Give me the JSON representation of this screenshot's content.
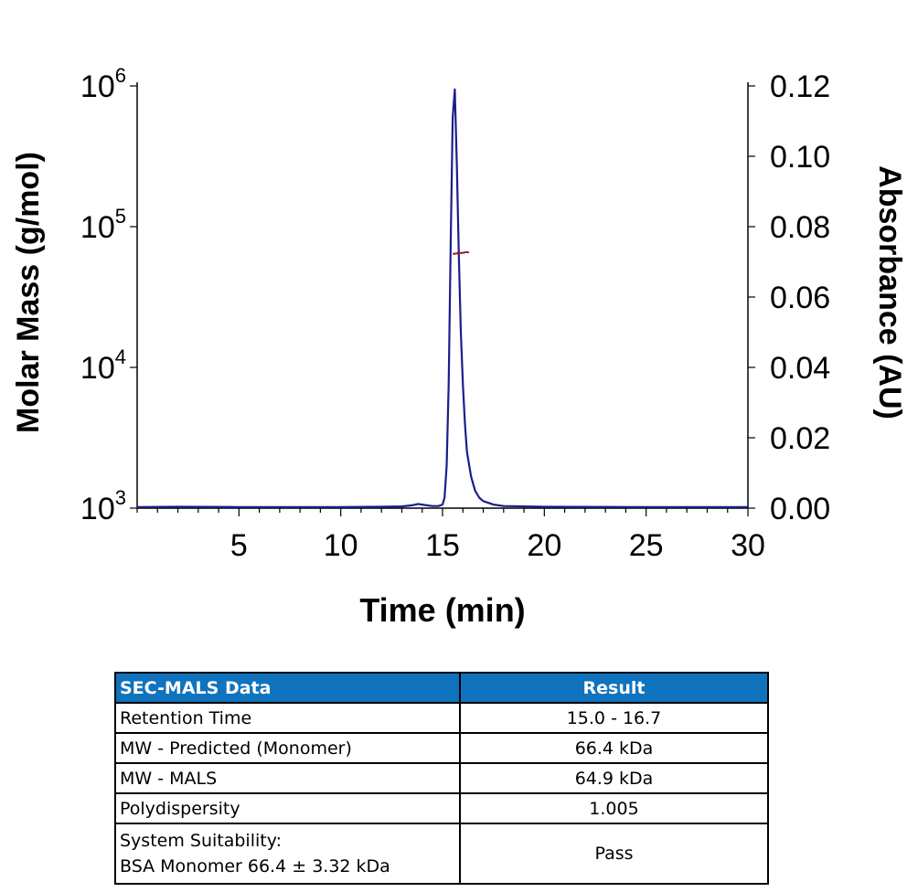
{
  "chart_data": {
    "type": "line",
    "xlabel": "Time (min)",
    "ylabel_left": "Molar Mass (g/mol)",
    "ylabel_right": "Absorbance (AU)",
    "xlim": [
      0,
      30
    ],
    "x_ticks": [
      5,
      10,
      15,
      20,
      25,
      30
    ],
    "y_left_scale": "log",
    "y_left_lim": [
      1000,
      1000000
    ],
    "y_left_ticks": [
      {
        "base": "10",
        "exp": "3",
        "value": 1000
      },
      {
        "base": "10",
        "exp": "4",
        "value": 10000
      },
      {
        "base": "10",
        "exp": "5",
        "value": 100000
      },
      {
        "base": "10",
        "exp": "6",
        "value": 1000000
      }
    ],
    "y_right_lim": [
      0,
      0.12
    ],
    "y_right_ticks": [
      "0.00",
      "0.02",
      "0.04",
      "0.06",
      "0.08",
      "0.10",
      "0.12"
    ],
    "series": [
      {
        "axis": "right",
        "color": "#1a1f8c",
        "x": [
          0.0,
          2.0,
          5.0,
          8.0,
          10.0,
          12.0,
          13.0,
          13.5,
          13.8,
          14.1,
          14.5,
          14.8,
          15.0,
          15.1,
          15.2,
          15.3,
          15.4,
          15.5,
          15.6,
          15.7,
          15.8,
          15.9,
          16.0,
          16.1,
          16.2,
          16.4,
          16.6,
          16.8,
          17.0,
          17.5,
          18.0,
          20.0,
          25.0,
          28.0,
          30.0
        ],
        "y": [
          0.0003,
          0.0004,
          0.0003,
          0.0003,
          0.0003,
          0.0004,
          0.0005,
          0.0008,
          0.0012,
          0.0009,
          0.0006,
          0.0006,
          0.001,
          0.003,
          0.012,
          0.035,
          0.075,
          0.111,
          0.119,
          0.098,
          0.072,
          0.05,
          0.035,
          0.024,
          0.016,
          0.009,
          0.005,
          0.003,
          0.002,
          0.001,
          0.0006,
          0.0004,
          0.0003,
          0.0003,
          0.0003
        ]
      },
      {
        "axis": "left",
        "color": "#8b1a1a",
        "x": [
          15.5,
          15.6,
          15.7,
          15.8,
          15.9,
          16.0,
          16.1,
          16.2,
          16.3
        ],
        "y": [
          64000,
          64200,
          64500,
          64800,
          65000,
          65200,
          65600,
          66000,
          65500
        ]
      }
    ]
  },
  "table": {
    "headers": [
      "SEC-MALS Data",
      "Result"
    ],
    "rows": [
      {
        "label": "Retention Time",
        "value": "15.0 - 16.7"
      },
      {
        "label": "MW - Predicted (Monomer)",
        "value": "66.4 kDa"
      },
      {
        "label": "MW - MALS",
        "value": "64.9 kDa"
      },
      {
        "label": "Polydispersity",
        "value": "1.005"
      }
    ],
    "last_row": {
      "label_line1": "System Suitability:",
      "label_line2": "BSA Monomer 66.4 ± 3.32 kDa",
      "value": "Pass"
    }
  }
}
